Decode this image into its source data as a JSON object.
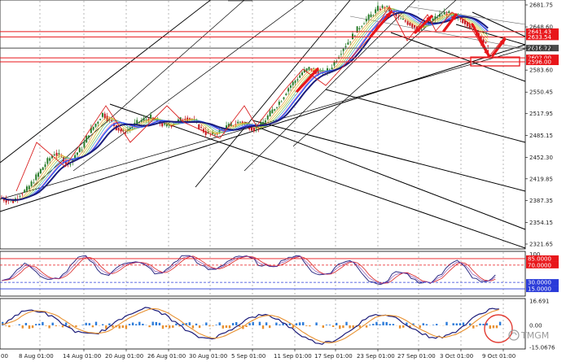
{
  "chart_data": [
    {
      "type": "candlestick",
      "name": "price-panel",
      "y_ticks": [
        "2681.75",
        "2648.60",
        "2616.72",
        "2583.60",
        "2550.45",
        "2517.95",
        "2485.15",
        "2452.30",
        "2419.85",
        "2387.35",
        "2354.15",
        "2321.65"
      ],
      "price_tags": [
        {
          "label": "2641.43",
          "color": "#e8161a"
        },
        {
          "label": "2633.54",
          "color": "#e8161a"
        },
        {
          "label": "2616.72",
          "color": "#4a4a4a"
        },
        {
          "label": "2602.00",
          "color": "#e8161a"
        },
        {
          "label": "2596.00",
          "color": "#e8161a"
        }
      ],
      "x_labels": [
        "8 Aug 01:00",
        "14 Aug 01:00",
        "20 Aug 01:00",
        "26 Aug 01:00",
        "30 Aug 01:00",
        "5 Sep 01:00",
        "11 Sep 01:00",
        "17 Sep 01:00",
        "23 Sep 01:00",
        "27 Sep 01:00",
        "3 Oct 01:00",
        "9 Oct 01:00"
      ],
      "close_path": [
        2392,
        2388,
        2386,
        2397,
        2404,
        2418,
        2433,
        2447,
        2459,
        2452,
        2441,
        2456,
        2467,
        2489,
        2503,
        2518,
        2508,
        2497,
        2489,
        2497,
        2504,
        2509,
        2512,
        2506,
        2499,
        2502,
        2507,
        2512,
        2509,
        2498,
        2489,
        2486,
        2492,
        2498,
        2502,
        2506,
        2501,
        2495,
        2500,
        2514,
        2527,
        2540,
        2557,
        2568,
        2580,
        2586,
        2583,
        2578,
        2585,
        2601,
        2618,
        2630,
        2645,
        2657,
        2666,
        2676,
        2679,
        2671,
        2661,
        2657,
        2651,
        2646,
        2654,
        2660,
        2666,
        2670,
        2664,
        2660,
        2654,
        2644,
        2630,
        2616
      ]
    },
    {
      "type": "line",
      "name": "stochastic-panel",
      "y_ticks": [
        "100",
        "85.0000",
        "70.0000",
        "30.0000",
        "15.0000"
      ],
      "levels": [
        85,
        70,
        30,
        15
      ]
    },
    {
      "type": "bar",
      "name": "macd-panel",
      "y_ticks": [
        "16.691",
        "0.00",
        "-15.0676"
      ]
    }
  ],
  "watermark": "TMGM",
  "colors": {
    "up": "#2a7d2a",
    "down": "#c4161c",
    "resistance": "#e8161a",
    "ma_navy": "#1c1c7a",
    "ma_blue": "#2a56ff"
  }
}
